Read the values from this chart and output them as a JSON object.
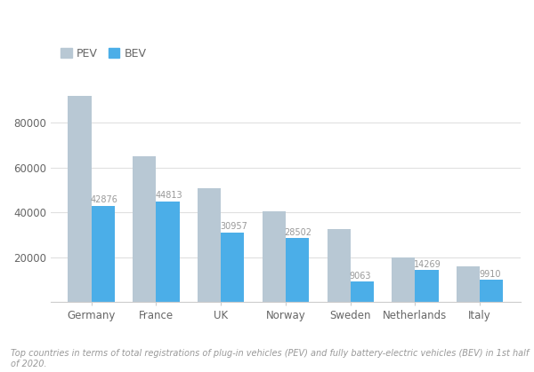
{
  "categories": [
    "Germany",
    "France",
    "UK",
    "Norway",
    "Sweden",
    "Netherlands",
    "Italy"
  ],
  "pev_values": [
    92131,
    65018,
    50642,
    40626,
    32374,
    19978,
    16049
  ],
  "bev_values": [
    42876,
    44813,
    30957,
    28502,
    9063,
    14269,
    9910
  ],
  "pev_color": "#b8c8d4",
  "bev_color": "#4baee8",
  "label_color": "#999999",
  "axis_label_color": "#666666",
  "background_color": "#ffffff",
  "legend_pev": "PEV",
  "legend_bev": "BEV",
  "footnote": "Top countries in terms of total registrations of plug-in vehicles (PEV) and fully battery-electric vehicles (BEV) in 1st half\nof 2020.",
  "yticks": [
    20000,
    40000,
    60000,
    80000
  ],
  "bar_width": 0.36,
  "ylim_max": 100000
}
